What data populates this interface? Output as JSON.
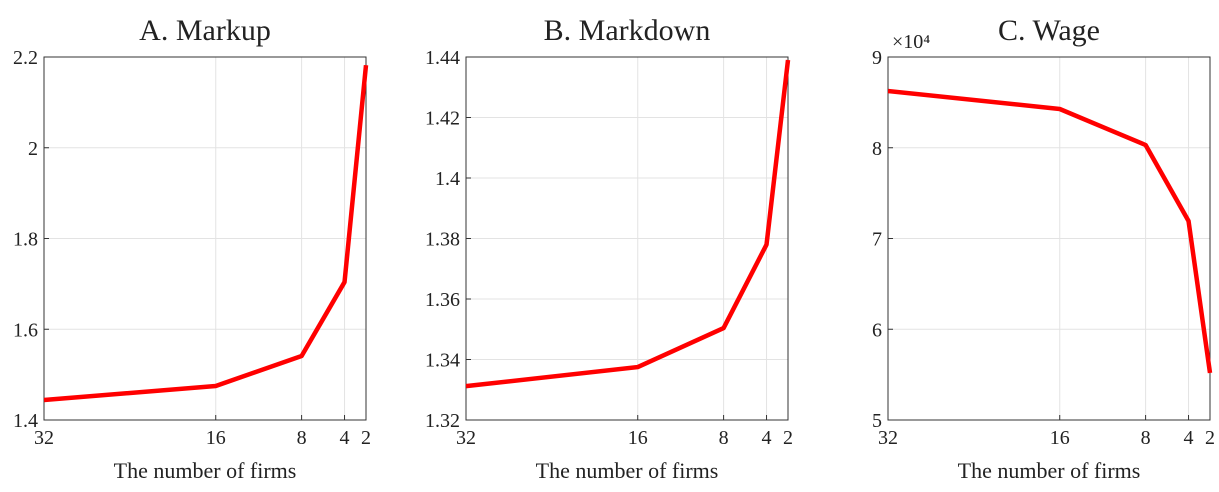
{
  "chart_data": [
    {
      "type": "line",
      "title": "A. Markup",
      "xlabel": "The number of firms",
      "x": [
        32,
        16,
        8,
        4,
        2
      ],
      "xlim": [
        32,
        2
      ],
      "xticks": [
        32,
        16,
        8,
        4,
        2
      ],
      "ylim": [
        1.4,
        2.2
      ],
      "yticks": [
        1.4,
        1.6,
        1.8,
        2,
        2.2
      ],
      "grid": true,
      "series": [
        {
          "color": "#ff0000",
          "values": [
            1.444,
            1.475,
            1.541,
            1.704,
            2.182
          ]
        }
      ]
    },
    {
      "type": "line",
      "title": "B. Markdown",
      "xlabel": "The number of firms",
      "x": [
        32,
        16,
        8,
        4,
        2
      ],
      "xlim": [
        32,
        2
      ],
      "xticks": [
        32,
        16,
        8,
        4,
        2
      ],
      "ylim": [
        1.32,
        1.44
      ],
      "yticks": [
        1.32,
        1.34,
        1.36,
        1.38,
        1.4,
        1.42,
        1.44
      ],
      "grid": true,
      "series": [
        {
          "color": "#ff0000",
          "values": [
            1.3312,
            1.3375,
            1.3504,
            1.378,
            1.439
          ]
        }
      ]
    },
    {
      "type": "line",
      "title": "C. Wage",
      "xlabel": "The number of firms",
      "y_multiplier": "×10⁴",
      "x": [
        32,
        16,
        8,
        4,
        2
      ],
      "xlim": [
        32,
        2
      ],
      "xticks": [
        32,
        16,
        8,
        4,
        2
      ],
      "ylim": [
        50000,
        90000
      ],
      "yticks": [
        {
          "value": 50000,
          "label": "5"
        },
        {
          "value": 60000,
          "label": "6"
        },
        {
          "value": 70000,
          "label": "7"
        },
        {
          "value": 80000,
          "label": "8"
        },
        {
          "value": 90000,
          "label": "9"
        }
      ],
      "grid": true,
      "series": [
        {
          "color": "#ff0000",
          "values": [
            86250,
            84270,
            80300,
            71930,
            55180
          ]
        }
      ]
    }
  ]
}
